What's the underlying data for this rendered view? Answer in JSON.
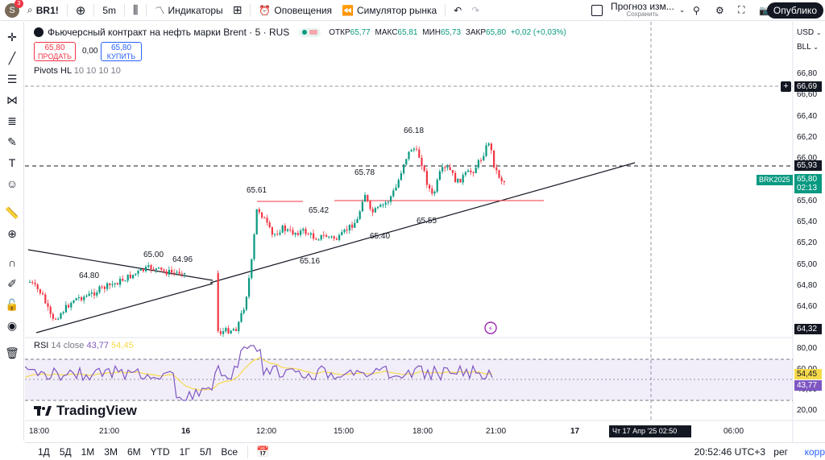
{
  "header": {
    "avatar_letter": "S",
    "notifications": "3",
    "symbol": "BR1!",
    "interval": "5m",
    "indicators": "Индикаторы",
    "alerts": "Оповещения",
    "replay": "Симулятор рынка",
    "forecast_title": "Прогноз изм...",
    "forecast_sub": "Сохранить",
    "publish": "Опублико"
  },
  "legend": {
    "title": "Фьючерсный контракт на нефть марки Brent · 5 · RUS",
    "open_label": "ОТКР",
    "open": "65,77",
    "high_label": "МАКС",
    "high": "65,81",
    "low_label": "МИН",
    "low": "65,73",
    "close_label": "ЗАКР",
    "close": "65,80",
    "change": "+0,02 (+0,03%)"
  },
  "trade": {
    "sell_price": "65,80",
    "sell_label": "ПРОДАТЬ",
    "spread": "0,00",
    "buy_price": "65,80",
    "buy_label": "КУПИТЬ"
  },
  "pivots": {
    "name": "Pivots HL",
    "params": "10 10 10 10"
  },
  "rsi": {
    "name": "RSI",
    "params": "14 close",
    "value": "43,77",
    "ma_value": "54,45"
  },
  "logo": "TradingView",
  "axis": {
    "currency": "USD",
    "unit": "BLL",
    "price_ticks": [
      "66,80",
      "66,60",
      "66,40",
      "66,20",
      "66,00",
      "65,80",
      "65,60",
      "65,40",
      "65,20",
      "65,00",
      "64,80",
      "64,60",
      "64,40"
    ],
    "rsi_ticks": [
      "80,00",
      "60,00",
      "40,00",
      "20,00"
    ],
    "crosshair_price": "66,69",
    "dashed_level": "65,93",
    "symbol_tag": "BRK2025",
    "last_price": "65,80",
    "countdown": "02:13",
    "low_price": "64,32",
    "rsi_ma_tag": "54,45",
    "rsi_tag": "43,77"
  },
  "time_axis": {
    "labels": [
      "18:00",
      "21:00",
      "16",
      "12:00",
      "15:00",
      "18:00",
      "21:00",
      "17",
      "06:00"
    ],
    "cursor": "Чт 17 Апр '25   02:50"
  },
  "bottom": {
    "ranges": [
      "1Д",
      "5Д",
      "1М",
      "3М",
      "6М",
      "YTD",
      "1Г",
      "5Л",
      "Все"
    ],
    "clock": "20:52:46 UTC+3",
    "pct": "рег",
    "auto": "корр"
  },
  "chart_data": {
    "type": "candlestick",
    "pivot_labels": [
      "64.80",
      "65.00",
      "64.96",
      "65.61",
      "65.16",
      "65.42",
      "65.78",
      "65.40",
      "66.18",
      "65.55"
    ],
    "levels": {
      "dashed": 65.93,
      "crosshair": 66.69,
      "last": 65.8
    },
    "colors": {
      "up": "#089981",
      "down": "#f23645",
      "rsi": "#7e57c2",
      "rsi_ma": "#f7d94c"
    }
  }
}
